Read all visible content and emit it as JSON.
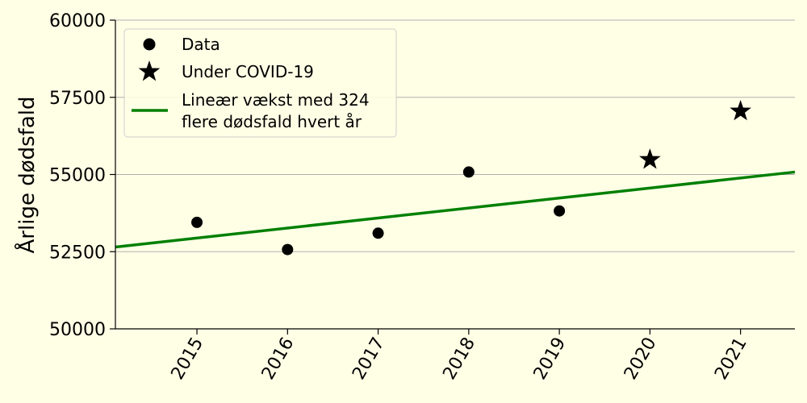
{
  "chart_data": {
    "type": "scatter",
    "ylabel": "Årlige dødsfald",
    "xlabel": "",
    "xlim": [
      2014.1,
      2021.6
    ],
    "ylim": [
      50000,
      60000
    ],
    "x_ticks": [
      "2015",
      "2016",
      "2017",
      "2018",
      "2019",
      "2020",
      "2021"
    ],
    "y_ticks": [
      "50000",
      "52500",
      "55000",
      "57500",
      "60000"
    ],
    "grid": "horizontal",
    "legend_position": "top-left",
    "series": [
      {
        "name": "Data",
        "marker": "circle",
        "color": "#000000",
        "points": [
          {
            "x": 2015,
            "y": 53450
          },
          {
            "x": 2016,
            "y": 52570
          },
          {
            "x": 2017,
            "y": 53100
          },
          {
            "x": 2018,
            "y": 55080
          },
          {
            "x": 2019,
            "y": 53820
          }
        ]
      },
      {
        "name": "Under COVID-19",
        "marker": "star",
        "color": "#000000",
        "points": [
          {
            "x": 2020,
            "y": 55480
          },
          {
            "x": 2021,
            "y": 57050
          }
        ]
      },
      {
        "name": "Lineær vækst med 324 flere dødsfald hvert år",
        "name_lines": [
          "Lineær vækst med 324",
          "flere dødsfald hvert år"
        ],
        "type": "line",
        "color": "#008000",
        "slope": 324,
        "points": [
          {
            "x": 2014.1,
            "y": 52650
          },
          {
            "x": 2021.6,
            "y": 55080
          }
        ]
      }
    ]
  }
}
